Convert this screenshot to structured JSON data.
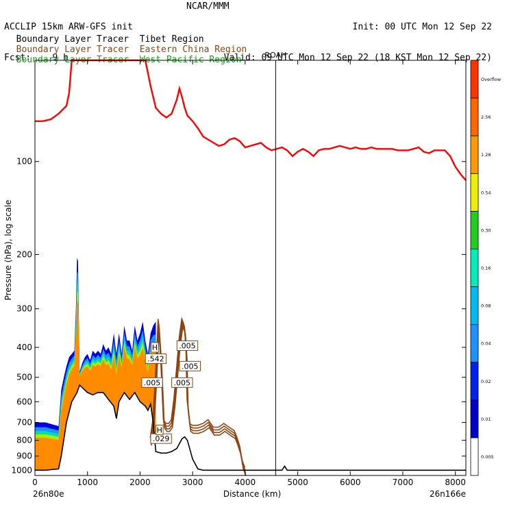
{
  "header": {
    "line1_left": "ACCLIP 15km ARW-GFS init",
    "line2_left": "Fcst:    9 h",
    "center": "NCAR/MMM",
    "init": "Init: 00 UTC Mon 12 Sep 22",
    "valid": "Valid: 09 UTC Mon 12 Sep 22 (18 KST Mon 12 Sep 22)"
  },
  "tracers": [
    {
      "prefix": "Boundary Layer Tracer",
      "region": "Tibet Region",
      "color": "#000000"
    },
    {
      "prefix": "Boundary Layer Tracer",
      "region": "Eastern China Region",
      "color": "#8B4513"
    },
    {
      "prefix": "Boundary Layer Tracer",
      "region": "West Pacific Region",
      "color": "#1a9a1a"
    }
  ],
  "chart_data": {
    "type": "cross-section",
    "xlabel": "Distance (km)",
    "ylabel": "Pressure (hPa), log scale",
    "xlim": [
      0,
      8200
    ],
    "ylim_hPa": [
      1040,
      47
    ],
    "log_y": true,
    "x_ticks": [
      0,
      1000,
      2000,
      3000,
      4000,
      5000,
      6000,
      7000,
      8000
    ],
    "y_ticks": [
      100,
      200,
      300,
      400,
      500,
      600,
      700,
      800,
      900,
      1000
    ],
    "start_label": "26n80e",
    "end_label": "26n166e",
    "marker": {
      "label": "ROAH",
      "x": 4580
    },
    "tropopause": {
      "color": "#ff0000",
      "x": [
        0,
        150,
        300,
        450,
        600,
        650,
        700,
        1050,
        1200,
        1400,
        1500,
        1550,
        1600,
        1650,
        1700,
        2050,
        2100,
        2200,
        2300,
        2400,
        2500,
        2600,
        2700,
        2750,
        2800,
        2850,
        2900,
        3000,
        3100,
        3200,
        3300,
        3400,
        3500,
        3600,
        3700,
        3800,
        3900,
        4000,
        4100,
        4200,
        4300,
        4400,
        4500,
        4600,
        4700,
        4800,
        4900,
        5000,
        5100,
        5200,
        5300,
        5400,
        5500,
        5600,
        5700,
        5800,
        5900,
        6000,
        6100,
        6200,
        6300,
        6400,
        6500,
        6600,
        6700,
        6800,
        6900,
        7000,
        7100,
        7200,
        7300,
        7400,
        7500,
        7600,
        7700,
        7800,
        7900,
        8000,
        8100,
        8200
      ],
      "p": [
        74,
        74,
        73,
        70,
        66,
        60,
        47,
        47,
        47,
        47,
        47,
        47,
        47,
        47,
        47,
        47,
        47,
        57,
        67,
        70,
        72,
        70,
        63,
        58,
        62,
        67,
        71,
        74,
        78,
        83,
        85,
        87,
        89,
        88,
        85,
        84,
        86,
        90,
        89,
        88,
        87,
        90,
        92,
        91,
        90,
        92,
        96,
        93,
        91,
        93,
        96,
        92,
        91,
        91,
        90,
        89,
        90,
        91,
        90,
        91,
        91,
        90,
        91,
        91,
        91,
        91,
        92,
        92,
        92,
        91,
        90,
        93,
        94,
        92,
        92,
        92,
        96,
        104,
        110,
        115
      ]
    },
    "terrain_tibet": {
      "color": "#000000",
      "x": [
        0,
        200,
        450,
        500,
        600,
        700,
        800,
        850,
        900,
        1000,
        1100,
        1200,
        1300,
        1400,
        1500,
        1550,
        1600,
        1700,
        1800,
        1900,
        2000,
        2100,
        2150,
        2200,
        2250,
        2300,
        2400,
        2500,
        2600,
        2700,
        2800,
        2850,
        2900,
        3000,
        3100,
        3200,
        3300,
        3400,
        3500,
        3600,
        3700,
        3800,
        3900,
        4000,
        4500,
        4650,
        4700,
        4750,
        4800,
        4850,
        5000,
        6000,
        7000,
        8000,
        8200
      ],
      "p": [
        1000,
        1000,
        990,
        900,
        700,
        600,
        560,
        530,
        540,
        560,
        570,
        560,
        560,
        590,
        620,
        680,
        600,
        560,
        590,
        560,
        600,
        620,
        640,
        610,
        700,
        870,
        880,
        880,
        870,
        850,
        790,
        780,
        800,
        920,
        990,
        1000,
        1000,
        1000,
        1000,
        1000,
        1000,
        1000,
        1000,
        1000,
        1000,
        1000,
        1000,
        970,
        1000,
        1000,
        1000,
        1000,
        1000,
        1000,
        1000
      ]
    },
    "plume_top_tibet": {
      "x": [
        0,
        200,
        450,
        500,
        550,
        600,
        650,
        700,
        750,
        780,
        800,
        820,
        850,
        900,
        950,
        1000,
        1050,
        1100,
        1150,
        1200,
        1250,
        1300,
        1350,
        1400,
        1450,
        1500,
        1550,
        1600,
        1650,
        1700,
        1750,
        1800,
        1850,
        1900,
        1950,
        2000,
        2050,
        2100,
        2150,
        2200,
        2250,
        2300
      ],
      "p": [
        700,
        700,
        720,
        550,
        500,
        460,
        430,
        420,
        410,
        300,
        205,
        210,
        480,
        450,
        430,
        420,
        440,
        410,
        420,
        410,
        420,
        390,
        410,
        400,
        420,
        360,
        420,
        360,
        420,
        340,
        380,
        380,
        410,
        340,
        380,
        360,
        330,
        380,
        420,
        360,
        340,
        330
      ],
      "levels": [
        {
          "name": "0.01",
          "color": "#0000dd"
        },
        {
          "name": "0.04",
          "color": "#1e90ff"
        },
        {
          "name": "0.16",
          "color": "#00ddbb"
        },
        {
          "name": "0.54",
          "color": "#aaee00"
        },
        {
          "name": "1.28",
          "color": "#ff8c00"
        }
      ]
    },
    "tracer_ec_contours": {
      "color": "#8B4513",
      "x": [
        2200,
        2250,
        2300,
        2350,
        2400,
        2450,
        2500,
        2550,
        2600,
        2650,
        2700,
        2750,
        2800,
        2830,
        2850,
        2880,
        2900,
        2950,
        3000,
        3100,
        3200,
        3300,
        3400,
        3500,
        3600,
        3700,
        3800,
        3850,
        3900,
        3950,
        4000
      ],
      "p": [
        800,
        700,
        500,
        330,
        450,
        700,
        720,
        720,
        700,
        600,
        480,
        380,
        330,
        340,
        350,
        420,
        600,
        720,
        730,
        730,
        720,
        700,
        740,
        740,
        720,
        740,
        760,
        800,
        850,
        950,
        1000
      ]
    },
    "labels": [
      {
        "text": ".005",
        "x": 2900,
        "p": 395
      },
      {
        "text": ".005",
        "x": 2950,
        "p": 460
      },
      {
        "text": ".005",
        "x": 2800,
        "p": 520
      },
      {
        "text": ".005",
        "x": 2230,
        "p": 520
      },
      {
        "text": ".542",
        "x": 2300,
        "p": 435
      },
      {
        "text": ".029",
        "x": 2400,
        "p": 790
      },
      {
        "text": "H",
        "x": 2370,
        "p": 740
      },
      {
        "text": "H",
        "x": 2280,
        "p": 400
      }
    ],
    "colorbar": {
      "labels": [
        "0.005",
        "0.01",
        "0.02",
        "0.04",
        "0.08",
        "0.16",
        "0.30",
        "0.54",
        "1.28",
        "2.56",
        "Overflow"
      ],
      "colors": [
        "#ffffff",
        "#0000cc",
        "#0022ee",
        "#1e90ff",
        "#00bbee",
        "#00eebb",
        "#22cc22",
        "#eeee00",
        "#ff9900",
        "#ff6600",
        "#ff3300"
      ]
    }
  }
}
